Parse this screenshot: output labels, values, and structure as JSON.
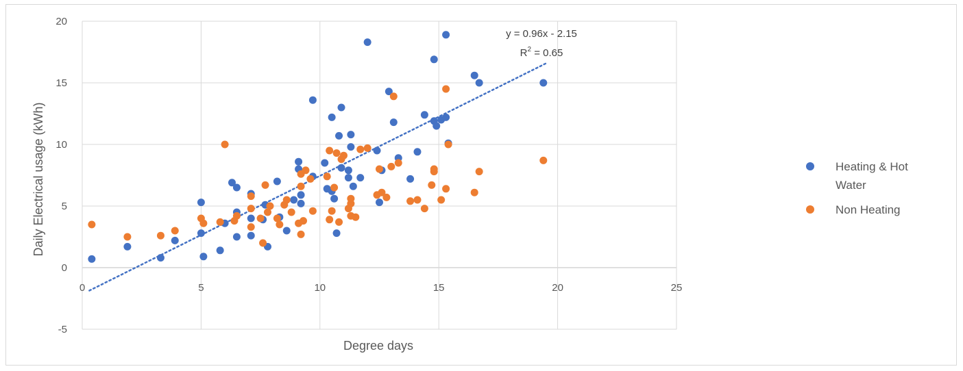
{
  "chart_data": {
    "type": "scatter",
    "title": "",
    "xlabel": "Degree days",
    "ylabel": "Daily Electrical usage (kWh)",
    "xlim": [
      0,
      25
    ],
    "ylim": [
      -5,
      20
    ],
    "x_ticks": [
      "0",
      "5",
      "10",
      "15",
      "20",
      "25"
    ],
    "y_ticks": [
      "-5",
      "0",
      "5",
      "10",
      "15",
      "20"
    ],
    "grid": true,
    "legend_position": "right",
    "trendline": {
      "series": "Heating & Hot Water",
      "slope": 0.96,
      "intercept": -2.15,
      "x_range": [
        0.3,
        19.5
      ],
      "equation": "y = 0.96x - 2.15",
      "r2_prefix": "R",
      "r2_sup": "2",
      "r2_suffix": " = 0.65",
      "style": "dotted"
    },
    "series": [
      {
        "name": "Heating & Hot Water",
        "legend_line1": "Heating & Hot",
        "legend_line2": "Water",
        "color": "#4472c4",
        "points": [
          [
            0.4,
            0.7
          ],
          [
            1.9,
            1.7
          ],
          [
            3.3,
            0.8
          ],
          [
            3.9,
            2.2
          ],
          [
            5.0,
            5.3
          ],
          [
            5.0,
            2.8
          ],
          [
            5.1,
            0.9
          ],
          [
            5.8,
            1.4
          ],
          [
            6.0,
            3.6
          ],
          [
            6.3,
            6.9
          ],
          [
            6.5,
            6.5
          ],
          [
            6.5,
            2.5
          ],
          [
            6.5,
            4.5
          ],
          [
            7.1,
            6.0
          ],
          [
            7.1,
            4.0
          ],
          [
            7.1,
            2.6
          ],
          [
            7.6,
            3.9
          ],
          [
            7.7,
            5.1
          ],
          [
            7.8,
            1.7
          ],
          [
            8.2,
            7.0
          ],
          [
            8.3,
            4.1
          ],
          [
            8.6,
            3.0
          ],
          [
            8.9,
            5.5
          ],
          [
            9.1,
            8.6
          ],
          [
            9.1,
            8.0
          ],
          [
            9.2,
            5.9
          ],
          [
            9.2,
            5.2
          ],
          [
            9.7,
            13.6
          ],
          [
            9.7,
            7.4
          ],
          [
            10.2,
            8.5
          ],
          [
            10.3,
            6.4
          ],
          [
            10.5,
            6.2
          ],
          [
            10.5,
            12.2
          ],
          [
            10.6,
            5.6
          ],
          [
            10.7,
            2.8
          ],
          [
            10.8,
            10.7
          ],
          [
            10.9,
            13.0
          ],
          [
            10.9,
            8.1
          ],
          [
            11.2,
            7.9
          ],
          [
            11.2,
            7.3
          ],
          [
            11.3,
            10.8
          ],
          [
            11.3,
            9.8
          ],
          [
            11.4,
            6.6
          ],
          [
            11.7,
            7.3
          ],
          [
            12.0,
            18.3
          ],
          [
            12.4,
            9.5
          ],
          [
            12.5,
            5.3
          ],
          [
            12.6,
            7.9
          ],
          [
            12.9,
            14.3
          ],
          [
            13.1,
            11.8
          ],
          [
            13.3,
            8.9
          ],
          [
            13.8,
            7.2
          ],
          [
            14.1,
            9.4
          ],
          [
            14.4,
            12.4
          ],
          [
            14.8,
            11.9
          ],
          [
            14.8,
            16.9
          ],
          [
            14.9,
            11.5
          ],
          [
            15.1,
            12.0
          ],
          [
            15.3,
            18.9
          ],
          [
            15.3,
            12.2
          ],
          [
            15.4,
            10.1
          ],
          [
            16.5,
            15.6
          ],
          [
            16.7,
            15.0
          ],
          [
            19.4,
            15.0
          ]
        ]
      },
      {
        "name": "Non Heating",
        "legend_line1": "Non Heating",
        "legend_line2": "",
        "color": "#ed7d31",
        "points": [
          [
            0.4,
            3.5
          ],
          [
            1.9,
            2.5
          ],
          [
            3.3,
            2.6
          ],
          [
            3.9,
            3.0
          ],
          [
            5.0,
            4.0
          ],
          [
            5.1,
            3.6
          ],
          [
            5.8,
            3.7
          ],
          [
            6.0,
            10.0
          ],
          [
            6.4,
            3.8
          ],
          [
            6.5,
            4.2
          ],
          [
            7.1,
            5.8
          ],
          [
            7.1,
            4.8
          ],
          [
            7.1,
            3.3
          ],
          [
            7.5,
            4.0
          ],
          [
            7.6,
            2.0
          ],
          [
            7.7,
            6.7
          ],
          [
            7.8,
            4.5
          ],
          [
            7.9,
            5.0
          ],
          [
            8.2,
            4.0
          ],
          [
            8.3,
            3.5
          ],
          [
            8.5,
            5.1
          ],
          [
            8.6,
            5.5
          ],
          [
            8.8,
            4.5
          ],
          [
            9.1,
            3.6
          ],
          [
            9.2,
            2.7
          ],
          [
            9.2,
            6.6
          ],
          [
            9.2,
            7.6
          ],
          [
            9.3,
            3.8
          ],
          [
            9.4,
            7.9
          ],
          [
            9.6,
            7.2
          ],
          [
            9.7,
            4.6
          ],
          [
            10.3,
            7.4
          ],
          [
            10.4,
            3.9
          ],
          [
            10.4,
            9.5
          ],
          [
            10.5,
            4.6
          ],
          [
            10.6,
            6.5
          ],
          [
            10.7,
            9.3
          ],
          [
            10.8,
            3.7
          ],
          [
            10.9,
            8.8
          ],
          [
            11.0,
            9.1
          ],
          [
            11.2,
            4.8
          ],
          [
            11.3,
            5.2
          ],
          [
            11.3,
            5.6
          ],
          [
            11.3,
            4.2
          ],
          [
            11.5,
            4.1
          ],
          [
            11.7,
            9.6
          ],
          [
            12.0,
            9.7
          ],
          [
            12.4,
            5.9
          ],
          [
            12.5,
            8.0
          ],
          [
            12.6,
            6.1
          ],
          [
            12.8,
            5.7
          ],
          [
            13.0,
            8.2
          ],
          [
            13.1,
            13.9
          ],
          [
            13.3,
            8.5
          ],
          [
            13.8,
            5.4
          ],
          [
            14.1,
            5.5
          ],
          [
            14.4,
            4.8
          ],
          [
            14.7,
            6.7
          ],
          [
            14.8,
            7.8
          ],
          [
            14.8,
            8.0
          ],
          [
            15.1,
            5.5
          ],
          [
            15.3,
            6.4
          ],
          [
            15.3,
            14.5
          ],
          [
            15.4,
            10.0
          ],
          [
            16.5,
            6.1
          ],
          [
            16.7,
            7.8
          ],
          [
            19.4,
            8.7
          ]
        ]
      }
    ]
  }
}
